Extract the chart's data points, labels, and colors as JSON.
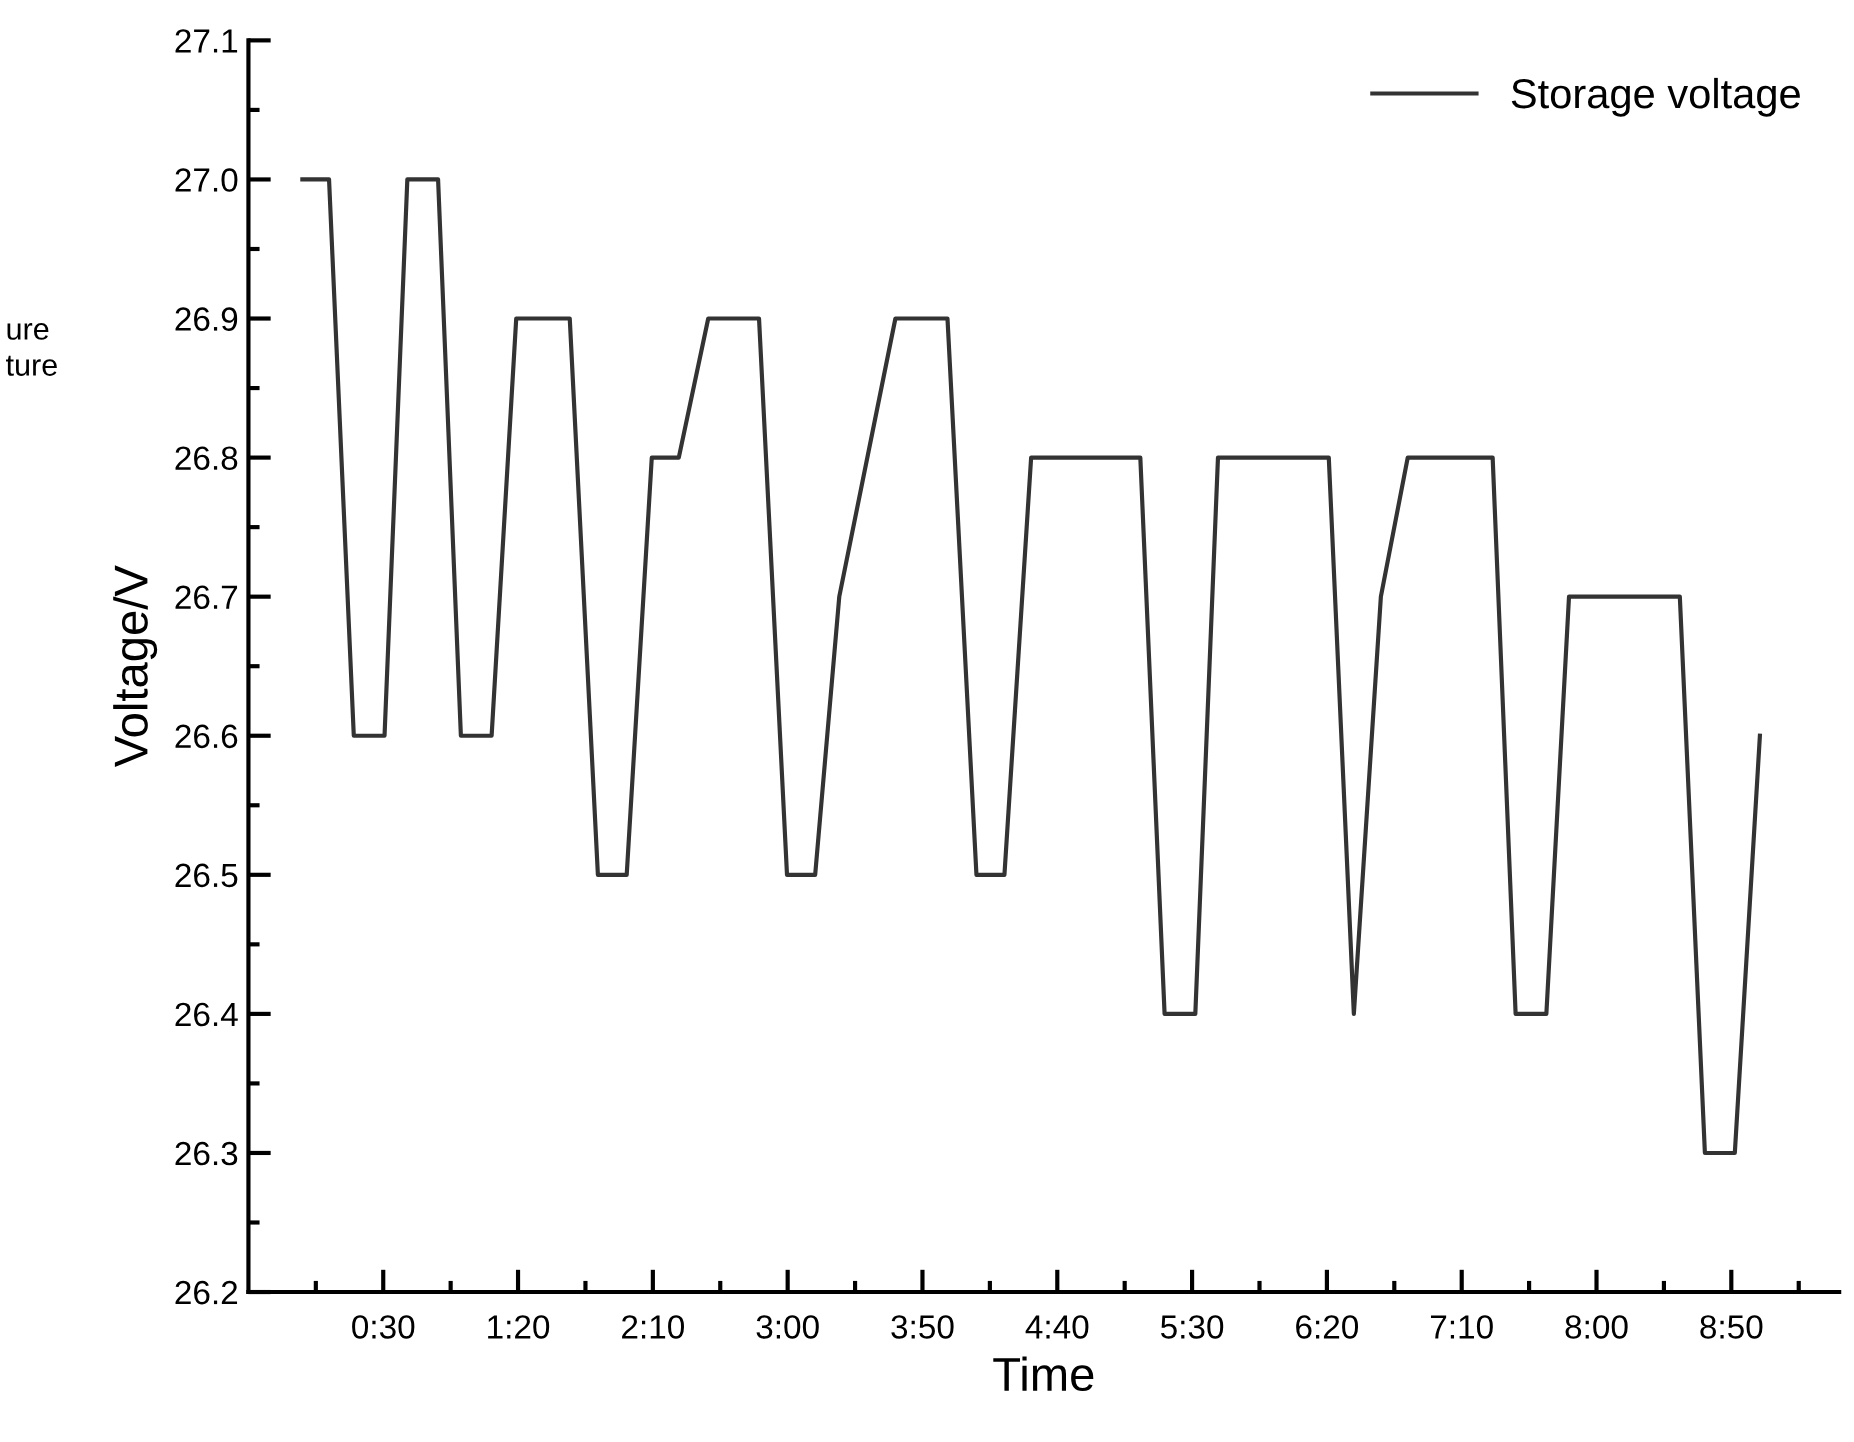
{
  "chart_data": {
    "type": "line",
    "xlabel": "Time",
    "ylabel": "Voltage/V",
    "x": [
      0,
      0.165,
      0.318,
      0.508,
      0.649,
      0.839,
      0.98,
      1.17,
      1.322,
      1.653,
      1.827,
      2.005,
      2.16,
      2.327,
      2.509,
      2.823,
      2.996,
      3.17,
      3.319,
      3.666,
      3.988,
      4.167,
      4.34,
      4.505,
      5.18,
      5.33,
      5.52,
      5.66,
      6.345,
      6.5,
      6.667,
      6.833,
      7.358,
      7.5,
      7.69,
      7.83,
      8.515,
      8.67,
      8.855,
      9.01
    ],
    "series": [
      {
        "name": "Storage voltage",
        "color": "#333333",
        "values": [
          27.0,
          27.0,
          26.6,
          26.6,
          27.0,
          27.0,
          26.6,
          26.6,
          26.9,
          26.9,
          26.5,
          26.5,
          26.8,
          26.8,
          26.9,
          26.9,
          26.5,
          26.5,
          26.7,
          26.9,
          26.9,
          26.5,
          26.5,
          26.8,
          26.8,
          26.4,
          26.4,
          26.8,
          26.8,
          26.4,
          26.7,
          26.8,
          26.8,
          26.4,
          26.4,
          26.7,
          26.7,
          26.3,
          26.3,
          26.6
        ]
      }
    ],
    "xlim": [
      -0.3333,
      9.5
    ],
    "xticks": [
      {
        "value": 0.0833,
        "label": null
      },
      {
        "value": 0.5,
        "label": "0:30"
      },
      {
        "value": 0.9167,
        "label": null
      },
      {
        "value": 1.3333,
        "label": "1:20"
      },
      {
        "value": 1.75,
        "label": null
      },
      {
        "value": 2.1667,
        "label": "2:10"
      },
      {
        "value": 2.5833,
        "label": null
      },
      {
        "value": 3.0,
        "label": "3:00"
      },
      {
        "value": 3.4167,
        "label": null
      },
      {
        "value": 3.8333,
        "label": "3:50"
      },
      {
        "value": 4.25,
        "label": null
      },
      {
        "value": 4.6667,
        "label": "4:40"
      },
      {
        "value": 5.0833,
        "label": null
      },
      {
        "value": 5.5,
        "label": "5:30"
      },
      {
        "value": 5.9167,
        "label": null
      },
      {
        "value": 6.3333,
        "label": "6:20"
      },
      {
        "value": 6.75,
        "label": null
      },
      {
        "value": 7.1667,
        "label": "7:10"
      },
      {
        "value": 7.5833,
        "label": null
      },
      {
        "value": 8.0,
        "label": "8:00"
      },
      {
        "value": 8.4167,
        "label": null
      },
      {
        "value": 8.8333,
        "label": "8:50"
      },
      {
        "value": 9.25,
        "label": null
      }
    ],
    "ylim": [
      26.2,
      27.1
    ],
    "yticks": [
      {
        "value": 26.2,
        "label": "26.2"
      },
      {
        "value": 26.25,
        "label": null
      },
      {
        "value": 26.3,
        "label": "26.3"
      },
      {
        "value": 26.35,
        "label": null
      },
      {
        "value": 26.4,
        "label": "26.4"
      },
      {
        "value": 26.45,
        "label": null
      },
      {
        "value": 26.5,
        "label": "26.5"
      },
      {
        "value": 26.55,
        "label": null
      },
      {
        "value": 26.6,
        "label": "26.6"
      },
      {
        "value": 26.65,
        "label": null
      },
      {
        "value": 26.7,
        "label": "26.7"
      },
      {
        "value": 26.75,
        "label": null
      },
      {
        "value": 26.8,
        "label": "26.8"
      },
      {
        "value": 26.85,
        "label": null
      },
      {
        "value": 26.9,
        "label": "26.9"
      },
      {
        "value": 26.95,
        "label": null
      },
      {
        "value": 27.0,
        "label": "27.0"
      },
      {
        "value": 27.05,
        "label": null
      },
      {
        "value": 27.1,
        "label": "27.1"
      }
    ],
    "grid": false,
    "legend": "top right",
    "marker": "none",
    "line_style": "solid",
    "annotations": [
      "ure",
      "ture"
    ]
  }
}
